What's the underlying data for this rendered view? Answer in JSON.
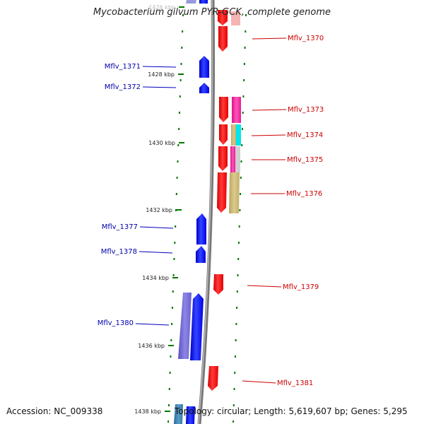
{
  "title": "Mycobacterium gilvum PYR-GCK, complete genome",
  "accession_text": "Accession: NC_009338",
  "topology_text": "Topology: circular; Length: 5,619,607 bp; Genes: 5,295",
  "colors": {
    "minus_strand_gene": "#0000ff",
    "plus_strand_gene": "#ff0000",
    "minus_label": "#0000aa",
    "plus_label": "#cc0000",
    "tick": "#007700",
    "backbone": "#888888"
  },
  "ticks": [
    {
      "kbp": 1426,
      "label": "1426 kbp"
    },
    {
      "kbp": 1428,
      "label": "1428 kbp"
    },
    {
      "kbp": 1430,
      "label": "1430 kbp"
    },
    {
      "kbp": 1432,
      "label": "1432 kbp"
    },
    {
      "kbp": 1434,
      "label": "1434 kbp"
    },
    {
      "kbp": 1436,
      "label": "1436 kbp"
    },
    {
      "kbp": 1438,
      "label": "1438 kbp"
    }
  ],
  "genes_minus": [
    {
      "label": "Mflv_1371"
    },
    {
      "label": "Mflv_1372"
    },
    {
      "label": "Mflv_1377"
    },
    {
      "label": "Mflv_1378"
    },
    {
      "label": "Mflv_1380"
    }
  ],
  "genes_plus": [
    {
      "label": "Mflv_1370"
    },
    {
      "label": "Mflv_1373"
    },
    {
      "label": "Mflv_1374"
    },
    {
      "label": "Mflv_1375"
    },
    {
      "label": "Mflv_1376"
    },
    {
      "label": "Mflv_1379"
    },
    {
      "label": "Mflv_1381"
    }
  ]
}
